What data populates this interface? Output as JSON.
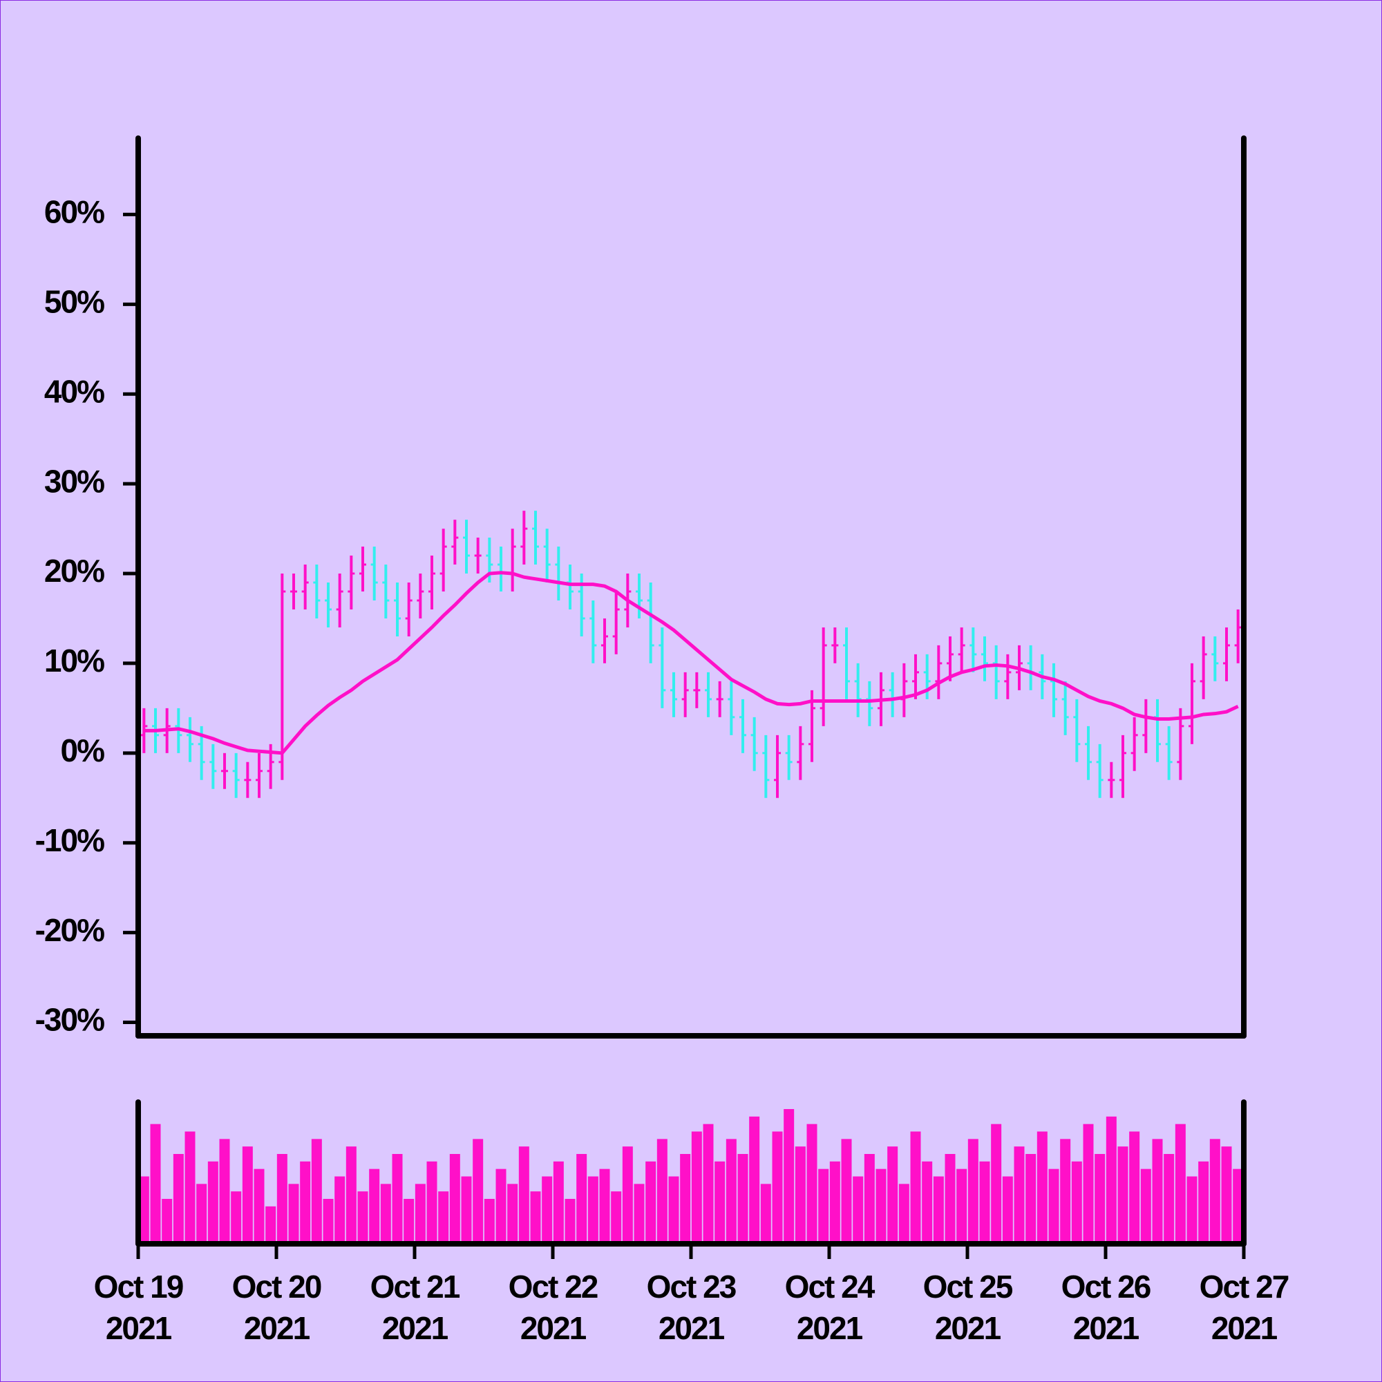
{
  "chart_data": {
    "type": "ohlc",
    "xlim": [
      "2021-10-19",
      "2021-10-27"
    ],
    "xticks": [
      {
        "value": "2021-10-19",
        "label": [
          "Oct 19",
          "2021"
        ]
      },
      {
        "value": "2021-10-20",
        "label": [
          "Oct 20",
          "2021"
        ]
      },
      {
        "value": "2021-10-21",
        "label": [
          "Oct 21",
          "2021"
        ]
      },
      {
        "value": "2021-10-22",
        "label": [
          "Oct 22",
          "2021"
        ]
      },
      {
        "value": "2021-10-23",
        "label": [
          "Oct 23",
          "2021"
        ]
      },
      {
        "value": "2021-10-24",
        "label": [
          "Oct 24",
          "2021"
        ]
      },
      {
        "value": "2021-10-25",
        "label": [
          "Oct 25",
          "2021"
        ]
      },
      {
        "value": "2021-10-26",
        "label": [
          "Oct 26",
          "2021"
        ]
      },
      {
        "value": "2021-10-27",
        "label": [
          "Oct 27",
          "2021"
        ]
      }
    ],
    "ylim": [
      -31.5,
      68.5
    ],
    "yticks": [
      {
        "value": -30,
        "label": "-30%"
      },
      {
        "value": -20,
        "label": "-20%"
      },
      {
        "value": -10,
        "label": "-10%"
      },
      {
        "value": 0,
        "label": "0%"
      },
      {
        "value": 10,
        "label": "10%"
      },
      {
        "value": 20,
        "label": "20%"
      },
      {
        "value": 30,
        "label": "30%"
      },
      {
        "value": 40,
        "label": "40%"
      },
      {
        "value": 50,
        "label": "50%"
      },
      {
        "value": 60,
        "label": "60%"
      }
    ],
    "up_color": "#ff10c8",
    "down_color": "#33eeee",
    "ma_color": "#ff10c8",
    "volume_color": "#ff10c8",
    "open": [
      2,
      3,
      2,
      3,
      2,
      1,
      -1,
      -2,
      -2,
      -3,
      -3,
      -2,
      -1,
      18,
      18,
      19,
      17,
      16,
      18,
      20,
      21,
      19,
      17,
      15,
      17,
      18,
      20,
      23,
      24,
      22,
      22,
      21,
      20,
      23,
      25,
      23,
      21,
      19,
      18,
      15,
      12,
      13,
      16,
      18,
      17,
      12,
      7,
      6,
      7,
      7,
      6,
      6,
      4,
      2,
      0,
      -3,
      0,
      -1,
      1,
      5,
      12,
      12,
      8,
      6,
      5,
      7,
      6,
      8,
      9,
      8,
      10,
      11,
      12,
      11,
      10,
      8,
      9,
      10,
      9,
      8,
      6,
      4,
      1,
      -1,
      -3,
      -3,
      0,
      2,
      4,
      1,
      -1,
      3,
      8,
      11,
      10,
      12
    ],
    "high": [
      5,
      5,
      5,
      5,
      4,
      3,
      1,
      0,
      0,
      -1,
      0,
      1,
      20,
      20,
      21,
      21,
      19,
      20,
      22,
      23,
      23,
      21,
      19,
      19,
      20,
      22,
      25,
      26,
      26,
      24,
      24,
      23,
      25,
      27,
      27,
      25,
      23,
      21,
      20,
      17,
      15,
      18,
      20,
      20,
      19,
      14,
      9,
      9,
      9,
      9,
      8,
      8,
      6,
      4,
      2,
      2,
      2,
      3,
      7,
      14,
      14,
      14,
      10,
      8,
      9,
      9,
      10,
      11,
      11,
      12,
      13,
      14,
      14,
      13,
      12,
      11,
      12,
      12,
      11,
      10,
      8,
      6,
      3,
      1,
      -1,
      2,
      4,
      6,
      6,
      3,
      5,
      10,
      13,
      13,
      14,
      16
    ],
    "low": [
      0,
      0,
      0,
      0,
      -1,
      -3,
      -4,
      -4,
      -5,
      -5,
      -5,
      -4,
      -3,
      16,
      16,
      15,
      14,
      14,
      16,
      18,
      17,
      15,
      13,
      13,
      15,
      16,
      18,
      21,
      20,
      20,
      19,
      18,
      18,
      21,
      21,
      19,
      17,
      16,
      13,
      10,
      10,
      11,
      14,
      15,
      10,
      5,
      4,
      4,
      5,
      4,
      4,
      2,
      0,
      -2,
      -5,
      -5,
      -3,
      -3,
      -1,
      3,
      10,
      6,
      4,
      3,
      3,
      4,
      4,
      6,
      6,
      6,
      8,
      9,
      9,
      8,
      6,
      6,
      7,
      7,
      6,
      4,
      2,
      -1,
      -3,
      -5,
      -5,
      -5,
      -2,
      0,
      -1,
      -3,
      -3,
      1,
      6,
      8,
      8,
      10
    ],
    "close": [
      3,
      2,
      3,
      2,
      1,
      -1,
      -2,
      -2,
      -3,
      -3,
      -2,
      -1,
      18,
      18,
      19,
      17,
      16,
      18,
      20,
      21,
      19,
      17,
      15,
      17,
      18,
      20,
      23,
      24,
      22,
      22,
      21,
      20,
      23,
      25,
      23,
      21,
      19,
      18,
      15,
      12,
      13,
      16,
      18,
      17,
      12,
      7,
      6,
      7,
      7,
      6,
      6,
      4,
      2,
      0,
      -3,
      0,
      -1,
      1,
      5,
      12,
      12,
      8,
      6,
      5,
      7,
      6,
      8,
      9,
      8,
      10,
      11,
      12,
      11,
      10,
      8,
      9,
      10,
      9,
      8,
      6,
      4,
      1,
      -1,
      -3,
      -3,
      0,
      2,
      4,
      1,
      -1,
      3,
      8,
      11,
      10,
      12,
      14
    ],
    "ma": [
      2.5,
      2.5,
      2.6,
      2.7,
      2.4,
      2,
      1.6,
      1.1,
      0.7,
      0.3,
      0.2,
      0.1,
      0,
      1.5,
      3,
      4.2,
      5.3,
      6.2,
      7,
      8,
      8.8,
      9.6,
      10.4,
      11.6,
      12.8,
      14,
      15.3,
      16.5,
      17.8,
      19,
      20,
      20.1,
      20,
      19.6,
      19.4,
      19.2,
      19,
      18.8,
      18.8,
      18.8,
      18.6,
      18,
      17,
      16.2,
      15.4,
      14.6,
      13.7,
      12.6,
      11.5,
      10.4,
      9.3,
      8.2,
      7.5,
      6.8,
      6,
      5.5,
      5.4,
      5.5,
      5.8,
      5.8,
      5.8,
      5.8,
      5.8,
      5.8,
      5.9,
      6,
      6.2,
      6.5,
      7,
      7.8,
      8.5,
      9,
      9.3,
      9.7,
      9.8,
      9.7,
      9.4,
      9,
      8.5,
      8.2,
      7.7,
      7,
      6.3,
      5.8,
      5.5,
      5,
      4.3,
      4,
      3.8,
      3.8,
      3.9,
      4,
      4.3,
      4.4,
      4.6,
      5.2
    ],
    "volume": [
      45,
      80,
      30,
      60,
      75,
      40,
      55,
      70,
      35,
      65,
      50,
      25,
      60,
      40,
      55,
      70,
      30,
      45,
      65,
      35,
      50,
      40,
      60,
      30,
      40,
      55,
      35,
      60,
      45,
      70,
      30,
      50,
      40,
      65,
      35,
      45,
      55,
      30,
      60,
      45,
      50,
      35,
      65,
      40,
      55,
      70,
      45,
      60,
      75,
      80,
      55,
      70,
      60,
      85,
      40,
      75,
      90,
      65,
      80,
      50,
      55,
      70,
      45,
      60,
      50,
      65,
      40,
      75,
      55,
      45,
      60,
      50,
      70,
      55,
      80,
      45,
      65,
      60,
      75,
      50,
      70,
      55,
      80,
      60,
      85,
      65,
      75,
      50,
      70,
      60,
      80,
      45,
      55,
      70,
      65,
      50
    ]
  }
}
